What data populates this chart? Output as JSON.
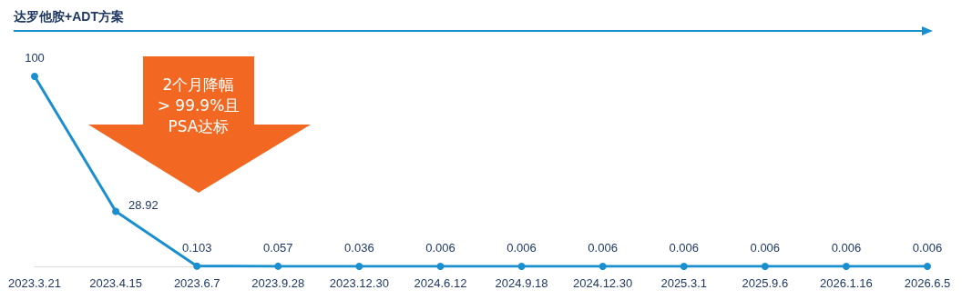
{
  "chart_data": {
    "type": "line",
    "title": "达罗他胺+ADT方案",
    "categories": [
      "2023.3.21",
      "2023.4.15",
      "2023.6.7",
      "2023.9.28",
      "2023.12.30",
      "2024.6.12",
      "2024.9.18",
      "2024.12.30",
      "2025.3.1",
      "2025.9.6",
      "2026.1.16",
      "2026.6.5"
    ],
    "series": [
      {
        "color": "#1a8fd0",
        "values": [
          100,
          28.92,
          0.103,
          0.057,
          0.036,
          0.006,
          0.006,
          0.006,
          0.006,
          0.006,
          0.006,
          0.006
        ]
      }
    ],
    "data_labels": true,
    "marker": "circle",
    "line_style": "solid",
    "grid": false,
    "tick_labels": "x",
    "annotations": [
      "2个月降幅\n> 99.9%且\nPSA达标"
    ]
  }
}
